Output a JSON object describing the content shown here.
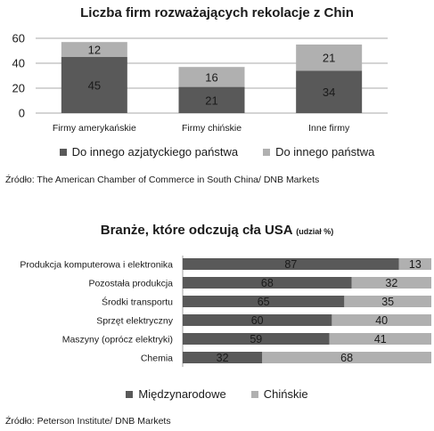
{
  "colors": {
    "dark": "#595959",
    "light": "#b0b0b0",
    "grid": "#8c8c8c"
  },
  "chart_data": [
    {
      "type": "bar",
      "stacked": true,
      "orientation": "vertical",
      "title": "Liczba firm rozważających rekolacje z Chin",
      "categories": [
        "Firmy amerykańskie",
        "Firmy chińskie",
        "Inne firmy"
      ],
      "series": [
        {
          "name": "Do innego azjatyckiego państwa",
          "values": [
            45,
            21,
            34
          ],
          "color": "#595959"
        },
        {
          "name": "Do innego państwa",
          "values": [
            12,
            16,
            21
          ],
          "color": "#b0b0b0"
        }
      ],
      "yticks": [
        "0",
        "20",
        "40",
        "60"
      ],
      "ylim": [
        0,
        60
      ],
      "grid": true,
      "legend": "bottom",
      "source": "Źródło: The American Chamber of Commerce in South China/ DNB Markets"
    },
    {
      "type": "bar",
      "stacked": true,
      "orientation": "horizontal",
      "title": "Branże, które odczują cła USA",
      "subtitle": "(udział %)",
      "categories": [
        "Produkcja komputerowa i elektronika",
        "Pozostała produkcja",
        "Środki transportu",
        "Sprzęt elektryczny",
        "Maszyny (oprócz elektryki)",
        "Chemia"
      ],
      "series": [
        {
          "name": "Międzynarodowe",
          "values": [
            87,
            68,
            65,
            60,
            59,
            32
          ],
          "color": "#595959"
        },
        {
          "name": "Chińskie",
          "values": [
            13,
            32,
            35,
            40,
            41,
            68
          ],
          "color": "#b0b0b0"
        }
      ],
      "xlim": [
        0,
        100
      ],
      "grid": false,
      "legend": "bottom",
      "source": "Źródło: Peterson Institute/ DNB Markets"
    }
  ]
}
